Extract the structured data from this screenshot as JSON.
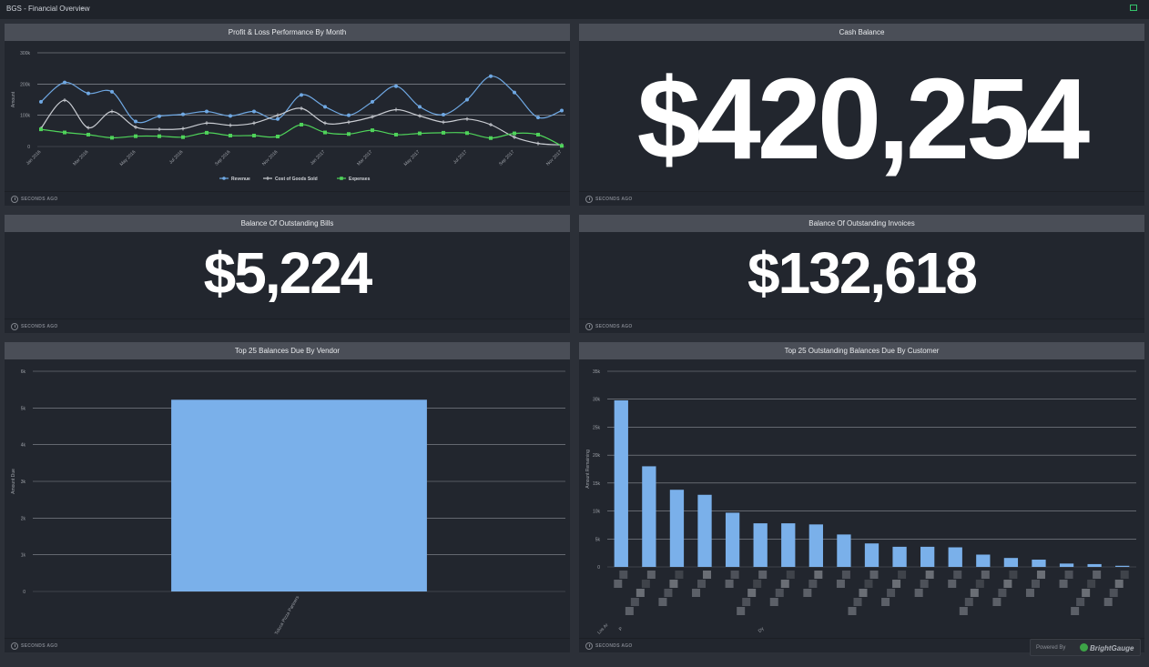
{
  "header": {
    "title": "BGS - Financial Overview",
    "caret": "⌄"
  },
  "panels": {
    "pl": {
      "title": "Profit & Loss Performance By Month",
      "footer": "SECONDS AGO"
    },
    "cash": {
      "title": "Cash Balance",
      "value": "$420,254",
      "footer": "SECONDS AGO"
    },
    "bills": {
      "title": "Balance Of Outstanding Bills",
      "value": "$5,224",
      "footer": "SECONDS AGO"
    },
    "invoices": {
      "title": "Balance Of Outstanding Invoices",
      "value": "$132,618",
      "footer": "SECONDS AGO"
    },
    "vendor": {
      "title": "Top 25 Balances Due By Vendor",
      "footer": "SECONDS AGO"
    },
    "customer": {
      "title": "Top 25 Outstanding Balances Due By Customer",
      "footer": "SECONDS AGO"
    }
  },
  "powered": {
    "label": "Powered By",
    "brand": "BrightGauge"
  },
  "chart_data": [
    {
      "type": "line",
      "title": "Profit & Loss Performance By Month",
      "ylabel": "Amount",
      "ylim": [
        0,
        300000
      ],
      "yticks": [
        "0",
        "100k",
        "200k",
        "300k"
      ],
      "grid": true,
      "legend": "bottom",
      "x": [
        "Jan 2016",
        "Feb 2016",
        "Mar 2016",
        "Apr 2016",
        "May 2016",
        "Jun 2016",
        "Jul 2016",
        "Aug 2016",
        "Sep 2016",
        "Oct 2016",
        "Nov 2016",
        "Dec 2016",
        "Jan 2017",
        "Feb 2017",
        "Mar 2017",
        "Apr 2017",
        "May 2017",
        "Jun 2017",
        "Jul 2017",
        "Aug 2017",
        "Sep 2017",
        "Oct 2017",
        "Nov 2017"
      ],
      "xtick_labels": [
        "Jan 2016",
        "Mar 2016",
        "May 2016",
        "Jul 2016",
        "Sep 2016",
        "Nov 2016",
        "Jan 2017",
        "Mar 2017",
        "May 2017",
        "Jul 2017",
        "Sep 2017",
        "Nov 2017"
      ],
      "series": [
        {
          "name": "Revenue",
          "color": "#6fa8e3",
          "marker": "circle",
          "values": [
            143000,
            205000,
            170000,
            175000,
            80000,
            97000,
            103000,
            112000,
            98000,
            112000,
            88000,
            165000,
            127000,
            100000,
            143000,
            193000,
            127000,
            102000,
            150000,
            225000,
            173000,
            93000,
            115000
          ]
        },
        {
          "name": "Cost of Goods Sold",
          "color": "#c9ccd2",
          "marker": "plus",
          "values": [
            58000,
            148000,
            60000,
            112000,
            62000,
            55000,
            57000,
            75000,
            68000,
            75000,
            100000,
            122000,
            75000,
            78000,
            95000,
            118000,
            98000,
            78000,
            88000,
            70000,
            30000,
            10000,
            5000
          ]
        },
        {
          "name": "Expenses",
          "color": "#4fd35a",
          "marker": "square",
          "values": [
            55000,
            45000,
            38000,
            28000,
            33000,
            33000,
            30000,
            44000,
            35000,
            35000,
            32000,
            70000,
            45000,
            40000,
            52000,
            38000,
            42000,
            44000,
            43000,
            27000,
            42000,
            38000,
            2000
          ]
        }
      ]
    },
    {
      "type": "bar",
      "title": "Top 25 Balances Due By Vendor",
      "ylabel": "Amount Due",
      "ylim": [
        0,
        6000
      ],
      "yticks": [
        "0",
        "1k",
        "2k",
        "3k",
        "4k",
        "5k",
        "6k"
      ],
      "categories": [
        "Toluca Pizza Partners"
      ],
      "values": [
        5224
      ],
      "color": "#7ab0ea"
    },
    {
      "type": "bar",
      "title": "Top 25 Outstanding Balances Due By Customer",
      "ylabel": "Amount Remaining",
      "ylim": [
        0,
        35000
      ],
      "yticks": [
        "0",
        "5k",
        "10k",
        "15k",
        "20k",
        "25k",
        "30k",
        "35k"
      ],
      "categories_visible": [
        "Los Ar",
        "P",
        "Dy"
      ],
      "values": [
        29800,
        18000,
        13800,
        12900,
        9700,
        7800,
        7800,
        7600,
        5800,
        4200,
        3600,
        3600,
        3500,
        2200,
        1600,
        1300,
        600,
        500,
        200
      ],
      "color": "#7ab0ea"
    }
  ]
}
